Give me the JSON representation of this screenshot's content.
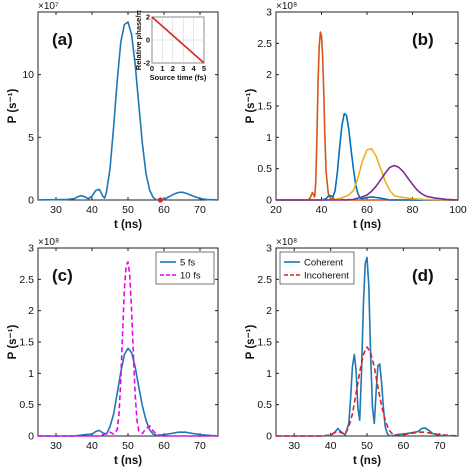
{
  "chart_data": [
    {
      "panel_label": "(a)",
      "type": "line",
      "ylabel": "P (s⁻¹)",
      "xlabel": "t (ns)",
      "multiplier": "×10⁷",
      "xlim": [
        25,
        75
      ],
      "ylim": [
        0,
        15
      ],
      "xticks": [
        "30",
        "40",
        "50",
        "60",
        "70"
      ],
      "yticks": [
        "0",
        "5",
        "10"
      ],
      "xtick_values": [
        30,
        40,
        50,
        60,
        70
      ],
      "ytick_values": [
        0,
        5,
        10
      ],
      "series": [
        {
          "color": "#1f77b4",
          "x": [
            25,
            30,
            33,
            35,
            36,
            37,
            38,
            39,
            40,
            41,
            42,
            42.5,
            43,
            43.5,
            44,
            45,
            46,
            47,
            48,
            49,
            50,
            51,
            52,
            53,
            54,
            55,
            56,
            57,
            58,
            59,
            60,
            61,
            62,
            63,
            64,
            65,
            66,
            67,
            68,
            70,
            72,
            75
          ],
          "y": [
            0.01,
            0.02,
            0.05,
            0.1,
            0.25,
            0.35,
            0.25,
            0.1,
            0.3,
            0.75,
            0.85,
            0.6,
            0.3,
            0.15,
            0.6,
            2.5,
            5.8,
            9.5,
            12.6,
            14.0,
            14.2,
            13.2,
            10.8,
            7.6,
            4.5,
            2.1,
            0.8,
            0.2,
            0.0,
            0.0,
            0.05,
            0.2,
            0.35,
            0.5,
            0.6,
            0.62,
            0.55,
            0.45,
            0.32,
            0.12,
            0.03,
            0.01
          ]
        }
      ],
      "marker": {
        "x": 59,
        "y": 0,
        "color": "#d62728"
      },
      "inset": {
        "xlabel": "Source time (fs)",
        "ylabel": "Relative phase/π",
        "xlim": [
          0,
          5
        ],
        "ylim": [
          -2,
          2
        ],
        "xticks": [
          "0",
          "1",
          "2",
          "3",
          "4",
          "5"
        ],
        "xtick_values": [
          0,
          1,
          2,
          3,
          4,
          5
        ],
        "yticks": [
          "-2",
          "0",
          "2"
        ],
        "ytick_values": [
          -2,
          0,
          2
        ],
        "line": {
          "x": [
            0,
            5
          ],
          "y": [
            2,
            -2
          ],
          "color": "#d62728"
        }
      }
    },
    {
      "panel_label": "(b)",
      "type": "line",
      "ylabel": "P (s⁻¹)",
      "xlabel": "t (ns)",
      "multiplier": "×10⁸",
      "xlim": [
        20,
        100
      ],
      "ylim": [
        0,
        3
      ],
      "xticks": [
        "20",
        "40",
        "60",
        "80",
        "100"
      ],
      "yticks": [
        "0",
        "0.5",
        "1",
        "1.5",
        "2",
        "2.5",
        "3"
      ],
      "xtick_values": [
        20,
        40,
        60,
        80,
        100
      ],
      "ytick_values": [
        0,
        0.5,
        1,
        1.5,
        2,
        2.5,
        3
      ],
      "series": [
        {
          "color": "#d95319",
          "x": [
            20,
            34,
            35,
            36,
            37,
            37.5,
            38,
            38.5,
            39,
            39.5,
            40,
            40.5,
            41,
            41.5,
            42,
            43,
            44,
            45,
            46,
            48,
            50,
            55,
            60,
            100
          ],
          "y": [
            0,
            0.0,
            0.03,
            0.12,
            0.05,
            0.3,
            1.0,
            1.9,
            2.45,
            2.68,
            2.62,
            2.3,
            1.7,
            1.0,
            0.45,
            0.1,
            0.02,
            0.03,
            0.01,
            0.02,
            0.0,
            0.0,
            0.0,
            0
          ]
        },
        {
          "color": "#0072bd",
          "x": [
            20,
            40,
            42,
            43,
            44,
            45,
            46,
            47,
            48,
            49,
            50,
            51,
            52,
            53,
            54,
            55,
            56,
            57,
            58,
            60,
            62,
            64,
            66,
            70,
            100
          ],
          "y": [
            0,
            0.0,
            0.02,
            0.06,
            0.07,
            0.05,
            0.15,
            0.45,
            0.85,
            1.2,
            1.38,
            1.35,
            1.12,
            0.8,
            0.5,
            0.25,
            0.1,
            0.03,
            0.02,
            0.04,
            0.05,
            0.04,
            0.03,
            0.0,
            0
          ]
        },
        {
          "color": "#edb120",
          "x": [
            20,
            44,
            46,
            48,
            50,
            52,
            54,
            56,
            58,
            60,
            62,
            64,
            66,
            68,
            70,
            72,
            74,
            76,
            80,
            85,
            100
          ],
          "y": [
            0,
            0.0,
            0.01,
            0.02,
            0.05,
            0.08,
            0.15,
            0.35,
            0.62,
            0.8,
            0.82,
            0.7,
            0.5,
            0.3,
            0.15,
            0.07,
            0.05,
            0.04,
            0.02,
            0.01,
            0
          ]
        },
        {
          "color": "#7e2f8e",
          "x": [
            20,
            50,
            54,
            56,
            58,
            60,
            62,
            64,
            66,
            68,
            70,
            72,
            74,
            76,
            78,
            80,
            82,
            84,
            86,
            90,
            95,
            100
          ],
          "y": [
            0,
            0.0,
            0.01,
            0.03,
            0.05,
            0.08,
            0.14,
            0.22,
            0.32,
            0.43,
            0.52,
            0.55,
            0.52,
            0.45,
            0.35,
            0.25,
            0.16,
            0.1,
            0.06,
            0.03,
            0.01,
            0
          ]
        }
      ]
    },
    {
      "panel_label": "(c)",
      "type": "line",
      "ylabel": "P (s⁻¹)",
      "xlabel": "t (ns)",
      "multiplier": "×10⁸",
      "xlim": [
        25,
        75
      ],
      "ylim": [
        0,
        3
      ],
      "xticks": [
        "30",
        "40",
        "50",
        "60",
        "70"
      ],
      "yticks": [
        "0",
        "0.5",
        "1",
        "1.5",
        "2",
        "2.5",
        "3"
      ],
      "xtick_values": [
        30,
        40,
        50,
        60,
        70
      ],
      "ytick_values": [
        0,
        0.5,
        1,
        1.5,
        2,
        2.5,
        3
      ],
      "legend": {
        "position": "top-right",
        "entries": [
          "5 fs",
          "10 fs"
        ]
      },
      "series": [
        {
          "name": "5 fs",
          "color": "#1f77b4",
          "dash": false,
          "x": [
            25,
            35,
            38,
            40,
            41,
            42,
            43,
            44,
            45,
            46,
            47,
            48,
            49,
            50,
            51,
            52,
            53,
            54,
            55,
            56,
            57,
            58,
            60,
            62,
            64,
            66,
            68,
            70,
            75
          ],
          "y": [
            0,
            0.0,
            0.02,
            0.03,
            0.07,
            0.09,
            0.05,
            0.03,
            0.15,
            0.35,
            0.68,
            1.02,
            1.3,
            1.4,
            1.33,
            1.1,
            0.78,
            0.48,
            0.25,
            0.1,
            0.03,
            0.01,
            0.02,
            0.04,
            0.06,
            0.06,
            0.04,
            0.02,
            0
          ]
        },
        {
          "name": "10 fs",
          "color": "#ee00ee",
          "dash": true,
          "x": [
            25,
            42,
            43,
            44,
            45,
            46,
            47,
            47.5,
            48,
            48.5,
            49,
            49.5,
            50,
            50.5,
            51,
            51.5,
            52,
            52.5,
            53,
            54,
            55,
            56,
            57,
            58,
            60,
            75
          ],
          "y": [
            0,
            0.0,
            0.02,
            0.04,
            0.06,
            0.03,
            0.1,
            0.35,
            0.9,
            1.65,
            2.35,
            2.72,
            2.78,
            2.55,
            2.0,
            1.3,
            0.65,
            0.25,
            0.08,
            0.04,
            0.12,
            0.16,
            0.08,
            0.02,
            0.0,
            0
          ]
        }
      ]
    },
    {
      "panel_label": "(d)",
      "type": "line",
      "ylabel": "P (s⁻¹)",
      "xlabel": "t (ns)",
      "multiplier": "×10⁸",
      "xlim": [
        25,
        75
      ],
      "ylim": [
        0,
        3
      ],
      "xticks": [
        "30",
        "40",
        "50",
        "60",
        "70"
      ],
      "yticks": [
        "0",
        "0.5",
        "1",
        "1.5",
        "2",
        "2.5",
        "3"
      ],
      "xtick_values": [
        30,
        40,
        50,
        60,
        70
      ],
      "ytick_values": [
        0,
        0.5,
        1,
        1.5,
        2,
        2.5,
        3
      ],
      "legend": {
        "position": "top-left",
        "entries": [
          "Coherent",
          "Incoherent"
        ]
      },
      "series": [
        {
          "name": "Coherent",
          "color": "#1f77b4",
          "dash": false,
          "x": [
            25,
            38,
            40,
            41,
            42,
            43,
            44,
            45,
            45.5,
            46,
            46.5,
            47,
            47.5,
            48,
            48.5,
            49,
            49.5,
            50,
            50.5,
            51,
            51.5,
            52,
            52.5,
            53,
            53.5,
            54,
            54.5,
            55,
            55.5,
            56,
            57,
            58,
            60,
            62,
            64,
            65,
            66,
            67,
            68,
            70,
            75
          ],
          "y": [
            0,
            0.0,
            0.01,
            0.05,
            0.12,
            0.06,
            0.02,
            0.2,
            0.6,
            1.1,
            1.3,
            1.05,
            0.45,
            0.25,
            1.0,
            2.1,
            2.75,
            2.85,
            2.4,
            1.3,
            0.45,
            0.2,
            0.7,
            1.12,
            1.15,
            0.85,
            0.45,
            0.15,
            0.05,
            0.01,
            0.0,
            0.02,
            0.03,
            0.05,
            0.07,
            0.12,
            0.13,
            0.09,
            0.04,
            0.01,
            0
          ]
        },
        {
          "name": "Incoherent",
          "color": "#e02020",
          "dash": true,
          "x": [
            25,
            38,
            40,
            41,
            42,
            43,
            44,
            45,
            46,
            47,
            48,
            49,
            50,
            51,
            52,
            53,
            54,
            55,
            56,
            57,
            58,
            60,
            62,
            64,
            66,
            68,
            70,
            75
          ],
          "y": [
            0,
            0.0,
            0.02,
            0.05,
            0.08,
            0.05,
            0.03,
            0.15,
            0.35,
            0.68,
            1.02,
            1.3,
            1.42,
            1.33,
            1.1,
            0.78,
            0.48,
            0.25,
            0.1,
            0.03,
            0.01,
            0.02,
            0.04,
            0.06,
            0.06,
            0.04,
            0.02,
            0
          ]
        }
      ]
    }
  ]
}
